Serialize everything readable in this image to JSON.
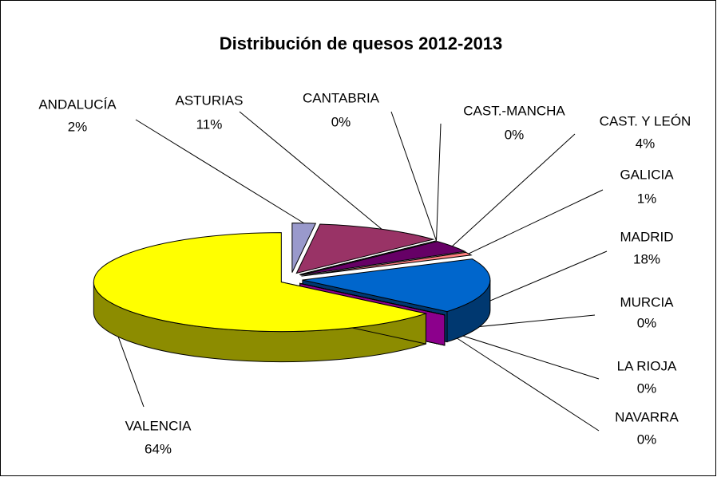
{
  "chart_data": {
    "type": "pie",
    "title": "Distribución de quesos 2012-2013",
    "categories": [
      "ANDALUCÍA",
      "ASTURIAS",
      "CANTABRIA",
      "CAST.-MANCHA",
      "CAST. Y LEÓN",
      "GALICIA",
      "MADRID",
      "MURCIA",
      "LA RIOJA",
      "NAVARRA",
      "VALENCIA"
    ],
    "values": [
      2,
      11,
      0,
      0,
      4,
      1,
      18,
      0,
      0,
      0,
      64
    ],
    "value_labels": [
      "2%",
      "11%",
      "0%",
      "0%",
      "4%",
      "1%",
      "18%",
      "0%",
      "0%",
      "0%",
      "64%"
    ],
    "colors": [
      "#9999cc",
      "#993366",
      "#ffffcc",
      "#ccffff",
      "#660066",
      "#ff8080",
      "#0066cc",
      "#ccccff",
      "#000080",
      "#ff00ff",
      "#ffff00"
    ]
  }
}
